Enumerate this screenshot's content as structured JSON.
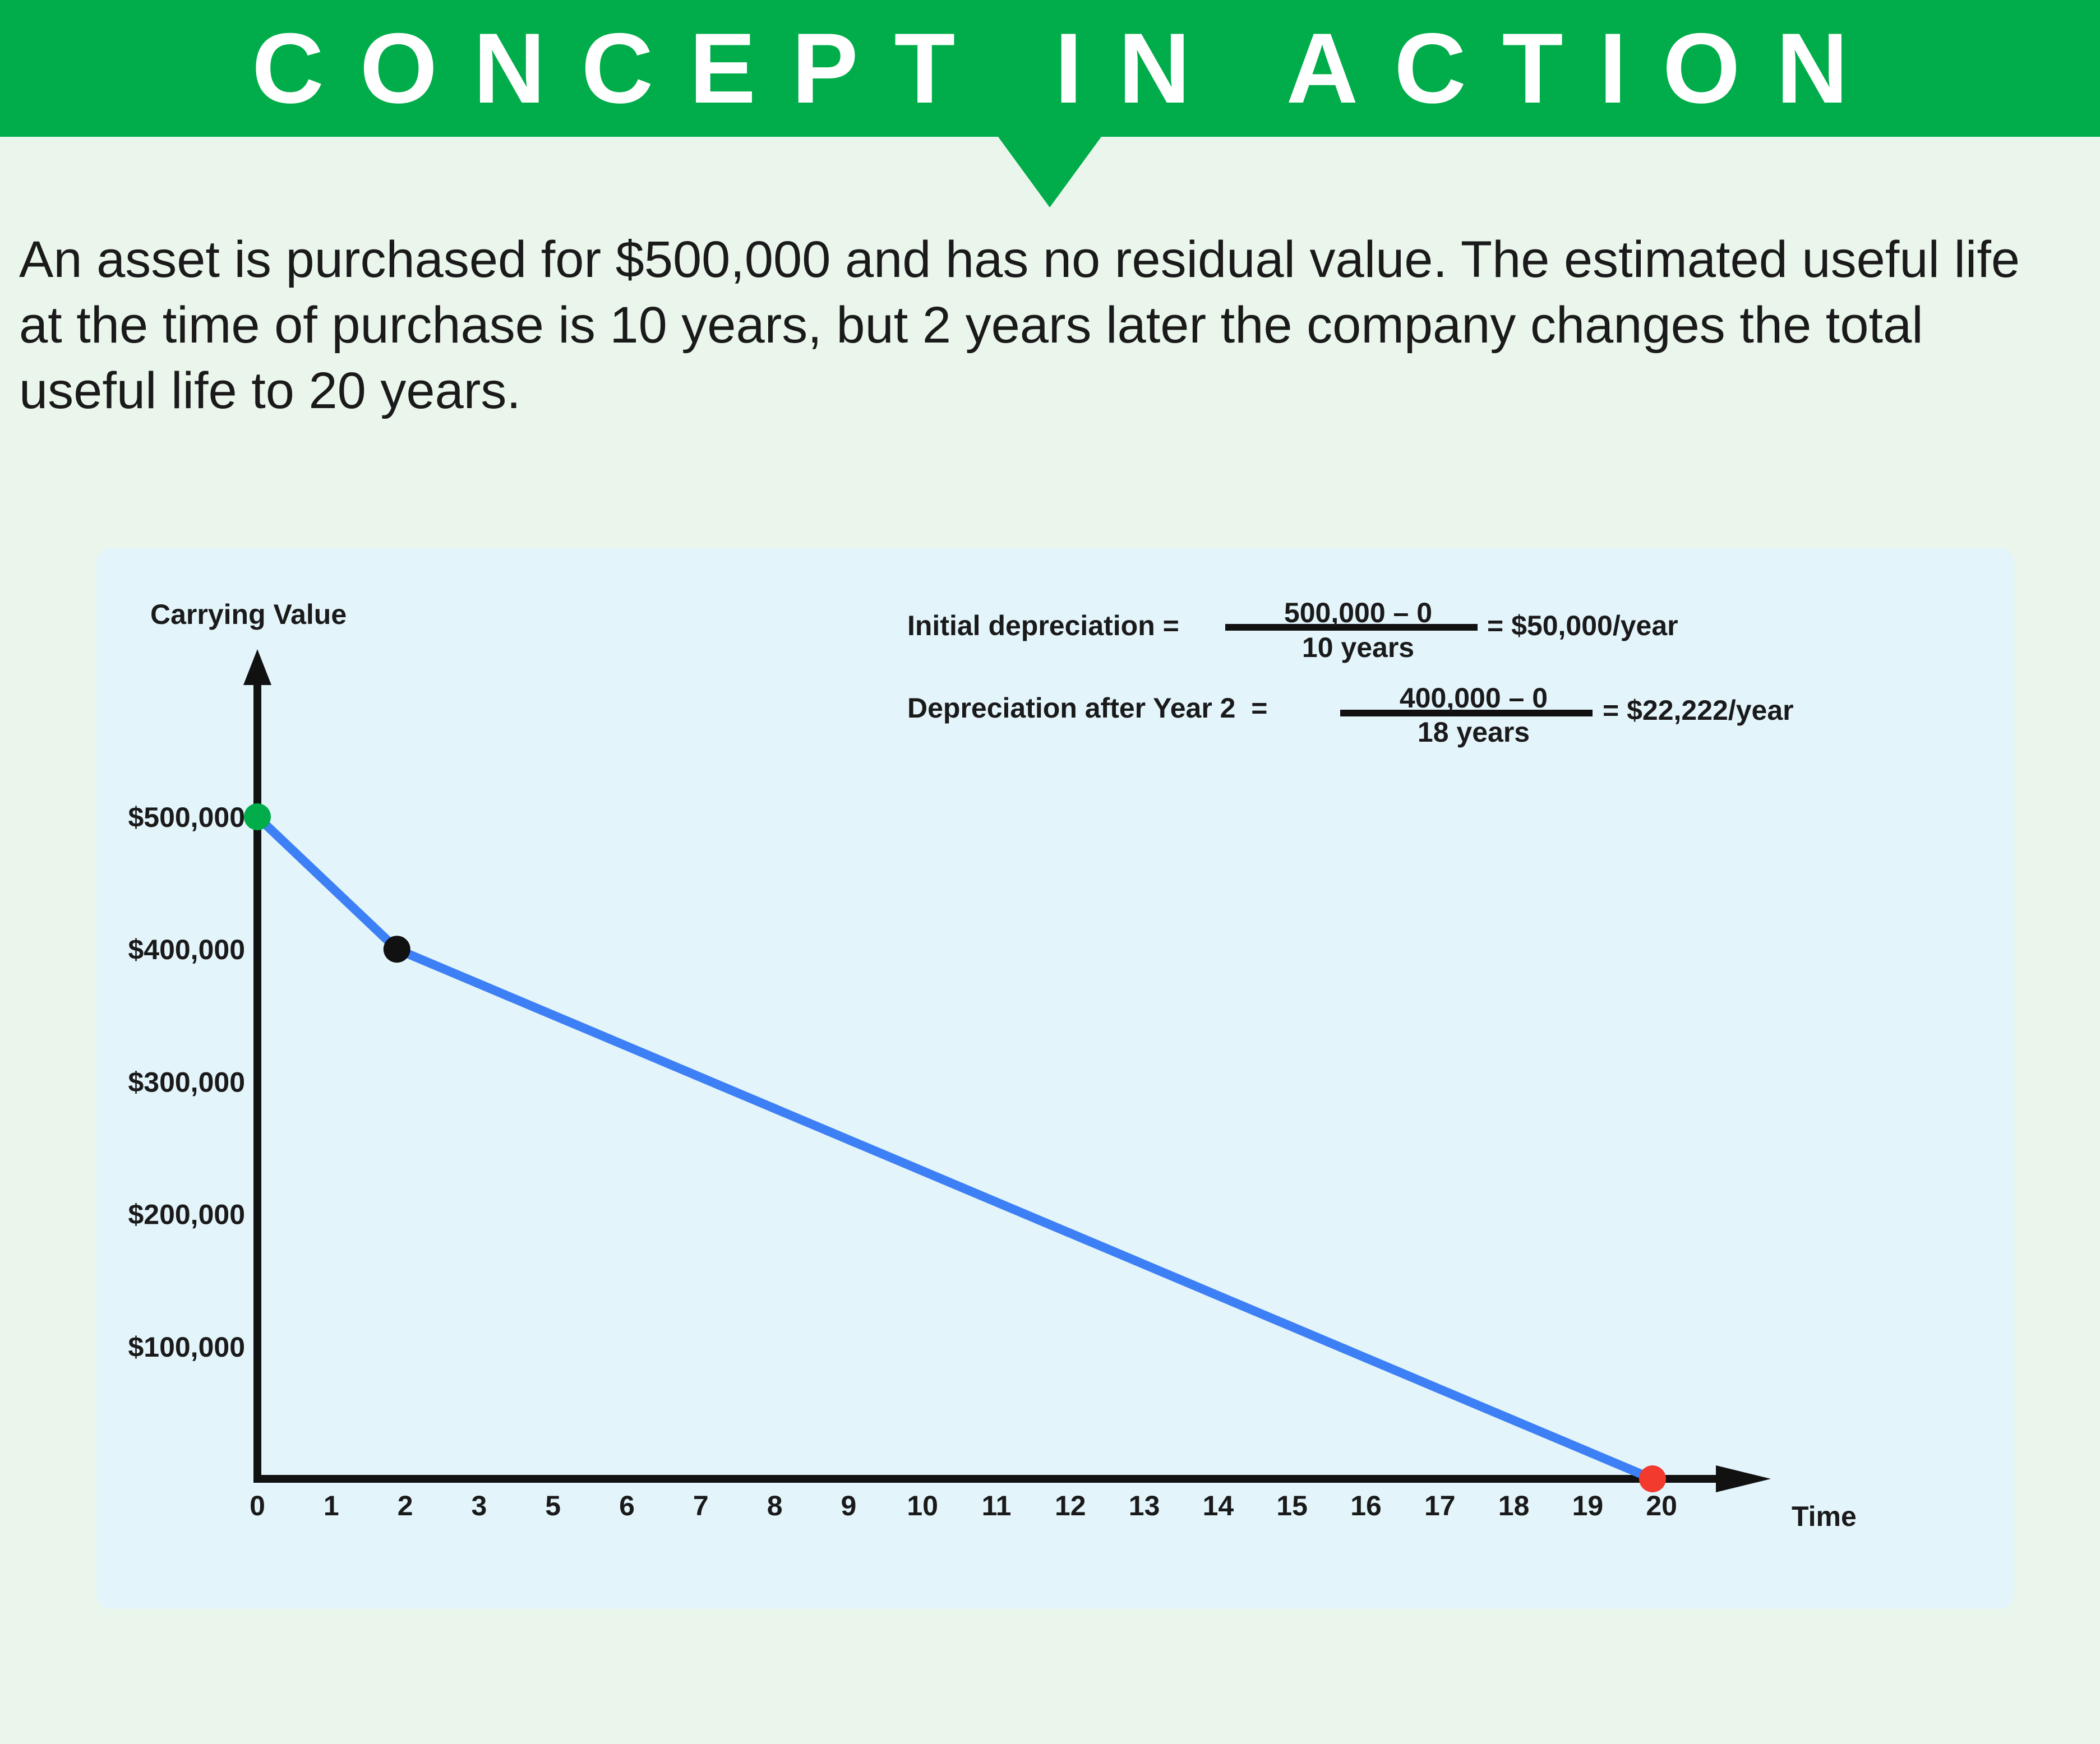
{
  "header": {
    "title": "CONCEPT IN ACTION"
  },
  "intro": {
    "text": "An asset is purchased for $500,000 and has no residual value. The estimated useful life at the time of purchase is 10 years, but 2 years later the company changes the total useful life to 20 years."
  },
  "formulas": {
    "initial": {
      "label": "Initial depreciation =",
      "numerator": "500,000 – 0",
      "denominator": "10 years",
      "result": "= $50,000/year"
    },
    "revised": {
      "label": "Depreciation after Year 2  =",
      "numerator": "400,000 – 0",
      "denominator": "18 years",
      "result": "= $22,222/year"
    }
  },
  "colors": {
    "banner": "#00ad4a",
    "line": "#3d7ff5",
    "start_point": "#00ad4a",
    "change_point": "#111111",
    "end_point": "#f23a2f",
    "axis": "#111111"
  },
  "chart_data": {
    "type": "line",
    "xlabel": "Time",
    "ylabel": "Carrying Value",
    "x_ticks": [
      0,
      1,
      2,
      3,
      5,
      6,
      7,
      8,
      9,
      10,
      11,
      12,
      13,
      14,
      15,
      16,
      17,
      18,
      19,
      20
    ],
    "y_ticks": [
      {
        "value": 100000,
        "label": "$100,000"
      },
      {
        "value": 200000,
        "label": "$200,000"
      },
      {
        "value": 300000,
        "label": "$300,000"
      },
      {
        "value": 400000,
        "label": "$400,000"
      },
      {
        "value": 500000,
        "label": "$500,000"
      }
    ],
    "ylim": [
      0,
      500000
    ],
    "grid": false,
    "legend": "none",
    "series": [
      {
        "points": [
          {
            "x": 0,
            "y": 500000
          },
          {
            "x": 2,
            "y": 400000
          },
          {
            "x": 20,
            "y": 0
          }
        ]
      }
    ],
    "markers": [
      {
        "x": 0,
        "y": 500000,
        "color": "#00ad4a"
      },
      {
        "x": 2,
        "y": 400000,
        "color": "#111111"
      },
      {
        "x": 20,
        "y": 0,
        "color": "#f23a2f"
      }
    ]
  }
}
